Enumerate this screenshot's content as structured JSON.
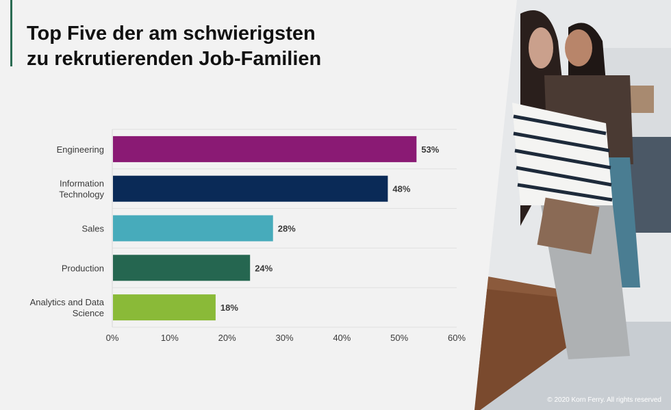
{
  "slide": {
    "title_line1": "Top Five der am schwierigsten",
    "title_line2": "zu rekrutierenden Job-Familien",
    "copyright": "© 2020 Korn Ferry. All rights reserved"
  },
  "chart_data": {
    "type": "bar",
    "orientation": "horizontal",
    "title": "Top Five der am schwierigsten zu rekrutierenden Job-Familien",
    "categories": [
      [
        "Engineering"
      ],
      [
        "Information",
        "Technology"
      ],
      [
        "Sales"
      ],
      [
        "Production"
      ],
      [
        "Analytics and Data",
        "Science"
      ]
    ],
    "values": [
      53,
      48,
      28,
      24,
      18
    ],
    "value_labels": [
      "53%",
      "48%",
      "28%",
      "24%",
      "18%"
    ],
    "colors": [
      "#8a1a74",
      "#0a2a57",
      "#47abbb",
      "#256650",
      "#8aba38"
    ],
    "xlim": [
      0,
      60
    ],
    "xticks": [
      0,
      10,
      20,
      30,
      40,
      50,
      60
    ],
    "xtick_labels": [
      "0%",
      "10%",
      "20%",
      "30%",
      "40%",
      "50%",
      "60%"
    ],
    "grid": true,
    "xlabel": "",
    "ylabel": ""
  }
}
